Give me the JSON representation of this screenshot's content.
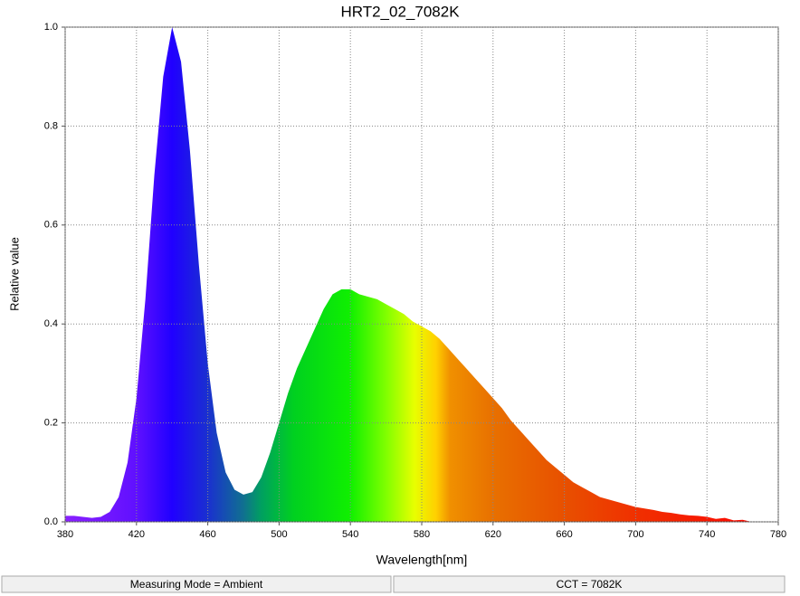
{
  "chart_data": {
    "type": "area",
    "title": "HRT2_02_7082K",
    "xlabel": "Wavelength[nm]",
    "ylabel": "Relative value",
    "x": [
      380,
      385,
      390,
      395,
      400,
      405,
      410,
      415,
      420,
      425,
      430,
      435,
      440,
      445,
      450,
      455,
      460,
      465,
      470,
      475,
      480,
      485,
      490,
      495,
      500,
      505,
      510,
      515,
      520,
      525,
      530,
      535,
      540,
      545,
      550,
      555,
      560,
      565,
      570,
      575,
      580,
      585,
      590,
      595,
      600,
      605,
      610,
      615,
      620,
      625,
      630,
      635,
      640,
      645,
      650,
      655,
      660,
      665,
      670,
      675,
      680,
      685,
      690,
      695,
      700,
      705,
      710,
      715,
      720,
      725,
      730,
      735,
      740,
      745,
      750,
      755,
      760,
      765
    ],
    "values": [
      0.012,
      0.012,
      0.01,
      0.008,
      0.01,
      0.02,
      0.05,
      0.12,
      0.25,
      0.45,
      0.7,
      0.9,
      1,
      0.93,
      0.75,
      0.52,
      0.32,
      0.18,
      0.1,
      0.065,
      0.055,
      0.06,
      0.09,
      0.14,
      0.2,
      0.26,
      0.31,
      0.35,
      0.39,
      0.43,
      0.46,
      0.47,
      0.47,
      0.46,
      0.455,
      0.45,
      0.44,
      0.43,
      0.42,
      0.405,
      0.395,
      0.385,
      0.37,
      0.35,
      0.33,
      0.31,
      0.29,
      0.27,
      0.25,
      0.23,
      0.205,
      0.185,
      0.165,
      0.145,
      0.125,
      0.11,
      0.095,
      0.08,
      0.07,
      0.06,
      0.05,
      0.045,
      0.04,
      0.035,
      0.03,
      0.027,
      0.024,
      0.02,
      0.018,
      0.015,
      0.013,
      0.012,
      0.01,
      0.006,
      0.008,
      0.003,
      0.004,
      0
    ],
    "xlim": [
      380,
      780
    ],
    "xticks": [
      380,
      420,
      460,
      500,
      540,
      580,
      620,
      660,
      700,
      740,
      780
    ],
    "ylim": [
      0,
      1
    ],
    "yticks": [
      {
        "value": 0,
        "label": "0.0"
      },
      0.2,
      0.4,
      0.6,
      0.8,
      {
        "value": 1,
        "label": "1.0"
      }
    ],
    "grid": true
  },
  "status_bar": {
    "left": "Measuring Mode = Ambient",
    "right": "CCT = 7082K"
  }
}
